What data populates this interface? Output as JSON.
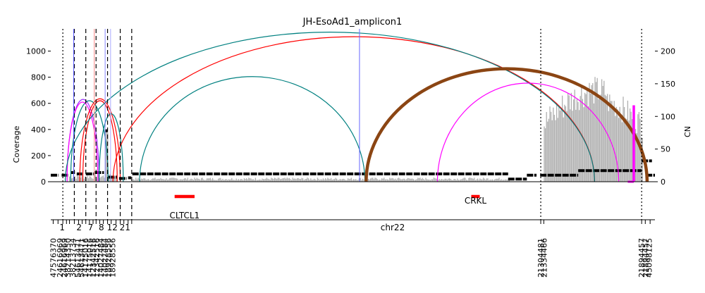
{
  "chart_data": {
    "type": "amplicon-graph",
    "title": "JH-EsoAd1_amplicon1",
    "ylabel_left": "Coverage",
    "ylabel_right": "CN",
    "xlabel": "chr22",
    "ylim_coverage": [
      0,
      1170
    ],
    "ylim_cn": [
      0,
      234
    ],
    "yticks_left": [
      "0",
      "200",
      "400",
      "600",
      "800",
      "1000"
    ],
    "yticks_right": [
      "0",
      "50",
      "100",
      "150",
      "200"
    ],
    "segment_numbers": [
      "1",
      "2",
      "7",
      "8",
      "12",
      "21"
    ],
    "breakpoint_labels": [
      "47576370",
      "24616969",
      "24616969",
      "38214350",
      "38213734",
      "54613471",
      "54613471",
      "14175016",
      "14175016",
      "12342516",
      "12342516",
      "14027484",
      "14027484",
      "18928556",
      "18928556",
      "21304481",
      "21334466",
      "21894457",
      "21894457",
      "45098125"
    ],
    "genes": [
      {
        "name": "CLTCL1",
        "start_frac": 0.205,
        "end_frac": 0.238
      },
      {
        "name": "CRKL",
        "start_frac": 0.696,
        "end_frac": 0.71
      }
    ],
    "discordant_edges": [
      {
        "color": "#9b30ff",
        "from": 0.027,
        "to": 0.08,
        "peak_coverage": 630
      },
      {
        "color": "#008080",
        "from": 0.033,
        "to": 0.095,
        "peak_coverage": 620
      },
      {
        "color": "#ff00ff",
        "from": 0.027,
        "to": 0.078,
        "peak_coverage": 610
      },
      {
        "color": "#ff0000",
        "from": 0.048,
        "to": 0.115,
        "peak_coverage": 635
      },
      {
        "color": "#ff0000",
        "from": 0.053,
        "to": 0.11,
        "peak_coverage": 620
      },
      {
        "color": "#008080",
        "from": 0.08,
        "to": 0.12,
        "peak_coverage": 520
      },
      {
        "color": "#008080",
        "from": 0.147,
        "to": 0.52,
        "peak_coverage": 805
      },
      {
        "color": "#ff0000",
        "from": 0.103,
        "to": 0.9,
        "peak_coverage": 1110
      },
      {
        "color": "#008080",
        "from": 0.024,
        "to": 0.9,
        "peak_coverage": 1145
      },
      {
        "color": "#ff00ff",
        "from": 0.64,
        "to": 0.94,
        "peak_coverage": 755
      },
      {
        "color": "#8b4513",
        "from": 0.522,
        "to": 0.987,
        "peak_coverage": 865
      }
    ],
    "segment_cn": [
      {
        "from": 0.0,
        "to": 0.013,
        "cn": 10
      },
      {
        "from": 0.018,
        "to": 0.03,
        "cn": 10
      },
      {
        "from": 0.033,
        "to": 0.04,
        "cn": 14
      },
      {
        "from": 0.043,
        "to": 0.052,
        "cn": 12
      },
      {
        "from": 0.058,
        "to": 0.072,
        "cn": 12
      },
      {
        "from": 0.073,
        "to": 0.088,
        "cn": 14
      },
      {
        "from": 0.09,
        "to": 0.094,
        "cn": 78
      },
      {
        "from": 0.095,
        "to": 0.11,
        "cn": 7
      },
      {
        "from": 0.113,
        "to": 0.126,
        "cn": 5
      },
      {
        "from": 0.128,
        "to": 0.133,
        "cn": 6
      },
      {
        "from": 0.135,
        "to": 0.757,
        "cn": 12
      },
      {
        "from": 0.757,
        "to": 0.788,
        "cn": 4
      },
      {
        "from": 0.788,
        "to": 0.804,
        "cn": 10
      },
      {
        "from": 0.81,
        "to": 0.873,
        "cn": 10
      },
      {
        "from": 0.873,
        "to": 0.978,
        "cn": 17
      },
      {
        "from": 0.978,
        "to": 0.995,
        "cn": 32
      },
      {
        "from": 0.985,
        "to": 1.0,
        "cn": 10
      }
    ],
    "grid": false
  }
}
